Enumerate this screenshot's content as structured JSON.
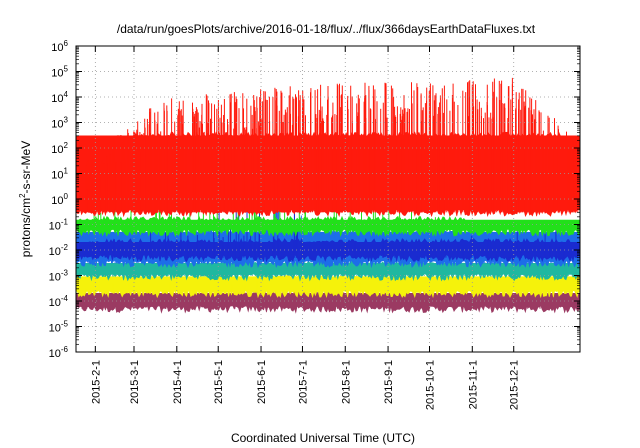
{
  "chart_data": {
    "type": "area",
    "title": "/data/run/goesPlots/archive/2016-01-18/flux/../flux/366daysEarthDataFluxes.txt",
    "xlabel": "Coordinated Universal Time (UTC)",
    "ylabel": "protons/cm2-s-sr-MeV",
    "ylabel_parts": [
      "protons/cm",
      "2",
      "-s-sr-MeV"
    ],
    "yscale": "log",
    "ylim": [
      1e-06,
      1000000.0
    ],
    "xlim": [
      "2015-01-18",
      "2016-01-18"
    ],
    "grid": true,
    "legend": "none",
    "y_ticks": [
      {
        "value": 1e-06,
        "base": "10",
        "exp": "-6"
      },
      {
        "value": 1e-05,
        "base": "10",
        "exp": "-5"
      },
      {
        "value": 0.0001,
        "base": "10",
        "exp": "-4"
      },
      {
        "value": 0.001,
        "base": "10",
        "exp": "-3"
      },
      {
        "value": 0.01,
        "base": "10",
        "exp": "-2"
      },
      {
        "value": 0.1,
        "base": "10",
        "exp": "-1"
      },
      {
        "value": 1,
        "base": "10",
        "exp": "0"
      },
      {
        "value": 10,
        "base": "10",
        "exp": "1"
      },
      {
        "value": 100,
        "base": "10",
        "exp": "2"
      },
      {
        "value": 1000,
        "base": "10",
        "exp": "3"
      },
      {
        "value": 10000,
        "base": "10",
        "exp": "4"
      },
      {
        "value": 100000,
        "base": "10",
        "exp": "5"
      },
      {
        "value": 1000000,
        "base": "10",
        "exp": "6"
      }
    ],
    "x_ticks": [
      {
        "date": "2015-02-01",
        "label": "2015-2-1"
      },
      {
        "date": "2015-03-01",
        "label": "2015-3-1"
      },
      {
        "date": "2015-04-01",
        "label": "2015-4-1"
      },
      {
        "date": "2015-05-01",
        "label": "2015-5-1"
      },
      {
        "date": "2015-06-01",
        "label": "2015-6-1"
      },
      {
        "date": "2015-07-01",
        "label": "2015-7-1"
      },
      {
        "date": "2015-08-01",
        "label": "2015-8-1"
      },
      {
        "date": "2015-09-01",
        "label": "2015-9-1"
      },
      {
        "date": "2015-10-01",
        "label": "2015-10-1"
      },
      {
        "date": "2015-11-01",
        "label": "2015-11-1"
      },
      {
        "date": "2015-12-01",
        "label": "2015-12-1"
      }
    ],
    "series": [
      {
        "color": "#9b3a62",
        "low": 5e-05,
        "high": 0.0002,
        "points": [
          [
            "2015-01-18",
            0.0002
          ],
          [
            "2015-04-15",
            0.00019
          ],
          [
            "2015-06-22",
            0.00022
          ],
          [
            "2015-09-15",
            0.0002
          ],
          [
            "2016-01-18",
            0.0002
          ]
        ]
      },
      {
        "color": "#f5f20b",
        "low": 0.0002,
        "high": 0.0009,
        "points": [
          [
            "2015-01-18",
            0.0009
          ],
          [
            "2015-04-15",
            0.0008
          ],
          [
            "2015-06-22",
            0.001
          ],
          [
            "2015-10-31",
            0.0008
          ],
          [
            "2016-01-18",
            0.0008
          ]
        ]
      },
      {
        "color": "#1fb8a0",
        "low": 0.0009,
        "high": 0.003,
        "points": [
          [
            "2015-01-18",
            0.003
          ],
          [
            "2015-04-15",
            0.003
          ],
          [
            "2015-06-22",
            0.004
          ],
          [
            "2015-10-31",
            0.003
          ],
          [
            "2016-01-18",
            0.003
          ]
        ]
      },
      {
        "color": "#1d6ee8",
        "low": 0.003,
        "high": 0.05,
        "points": [
          [
            "2015-01-18",
            0.04
          ],
          [
            "2015-03-20",
            0.05
          ],
          [
            "2015-06-22",
            1
          ],
          [
            "2015-06-26",
            5
          ],
          [
            "2015-07-02",
            0.1
          ],
          [
            "2015-10-31",
            0.05
          ],
          [
            "2016-01-18",
            0.04
          ]
        ]
      },
      {
        "color": "#1a2bd0",
        "low": 0.005,
        "high": 0.02,
        "points": [
          [
            "2015-01-18",
            0.015
          ],
          [
            "2015-03-17",
            0.1
          ],
          [
            "2015-06-25",
            3
          ],
          [
            "2015-07-01",
            0.02
          ],
          [
            "2015-11-04",
            0.05
          ],
          [
            "2015-12-30",
            0.2
          ],
          [
            "2016-01-18",
            0.015
          ]
        ]
      },
      {
        "color": "#22e01a",
        "low": 0.05,
        "high": 0.15,
        "points": [
          [
            "2015-01-18",
            0.12
          ],
          [
            "2015-03-17",
            50
          ],
          [
            "2015-06-25",
            1500
          ],
          [
            "2015-07-01",
            5
          ],
          [
            "2015-10-31",
            0.15
          ],
          [
            "2016-01-18",
            0.12
          ]
        ]
      },
      {
        "color": "#ff1a0d",
        "low": 0.3,
        "high": 300,
        "points": [
          [
            "2015-01-18",
            20
          ],
          [
            "2015-03-20",
            10000
          ],
          [
            "2015-06-25",
            30000
          ],
          [
            "2015-10-31",
            50000
          ],
          [
            "2015-11-30",
            60000
          ],
          [
            "2016-01-18",
            200
          ]
        ]
      }
    ]
  }
}
